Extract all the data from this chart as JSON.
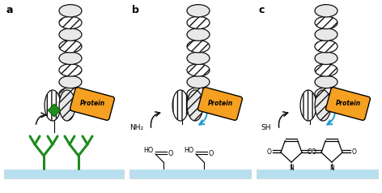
{
  "fig_width": 4.72,
  "fig_height": 2.38,
  "dpi": 100,
  "panel_labels": [
    "a",
    "b",
    "c"
  ],
  "protein_color": "#f5a020",
  "surface_color": "#b8dff0",
  "antibody_color": "#1e8c1e",
  "diamond_color": "#1e8c1e",
  "dna_fill_light": "#e8e8e8",
  "dna_fill_hatch": "#cccccc",
  "dna_edge": "#111111",
  "arrow_black": "#111111",
  "arrow_blue": "#2299cc",
  "label_fontsize": 9,
  "text_fontsize": 6.5
}
